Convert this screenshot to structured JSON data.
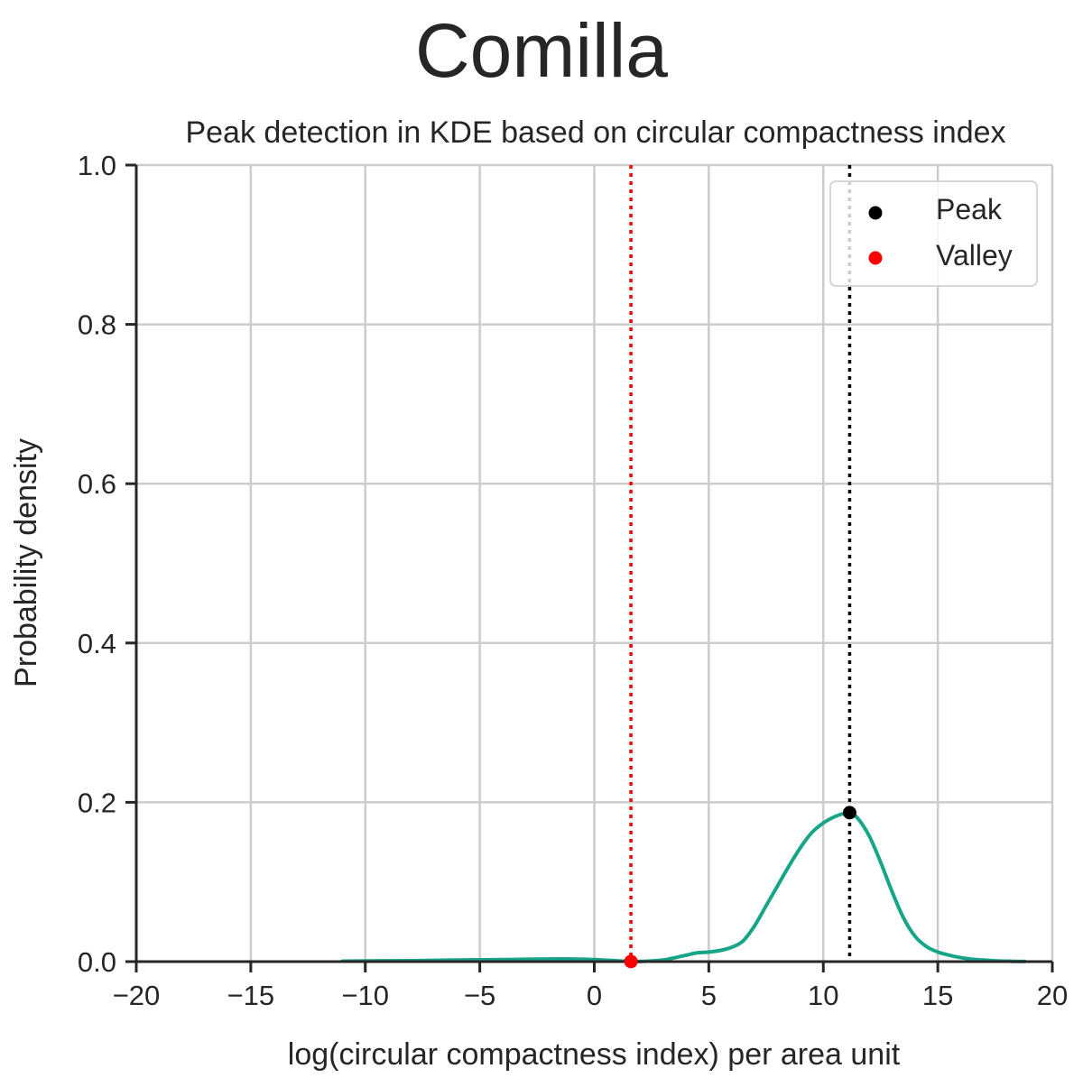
{
  "suptitle": "Comilla",
  "chart_data": {
    "type": "line",
    "title": "Peak detection in KDE based on circular compactness index",
    "xlabel": "log(circular compactness index) per area unit",
    "ylabel": "Probability density",
    "xlim": [
      -20,
      20
    ],
    "ylim": [
      0,
      1.0
    ],
    "x_ticks": [
      -20,
      -15,
      -10,
      -5,
      0,
      5,
      10,
      15,
      20
    ],
    "x_tick_labels": [
      "−20",
      "−15",
      "−10",
      "−5",
      "0",
      "5",
      "10",
      "15",
      "20"
    ],
    "y_ticks": [
      0.0,
      0.2,
      0.4,
      0.6,
      0.8,
      1.0
    ],
    "y_tick_labels": [
      "0.0",
      "0.2",
      "0.4",
      "0.6",
      "0.8",
      "1.0"
    ],
    "grid": true,
    "legend_position": "top-right",
    "kde": {
      "color": "#17a589",
      "x": [
        -11,
        -10,
        -9,
        -8,
        -7,
        -6,
        -5,
        -4,
        -3,
        -2,
        -1,
        0,
        1,
        1.6,
        2,
        3,
        4,
        4.5,
        5,
        5.5,
        6,
        6.5,
        7,
        7.5,
        8,
        8.5,
        9,
        9.5,
        10,
        10.5,
        11,
        11.15,
        11.5,
        12,
        12.5,
        13,
        13.5,
        14,
        14.5,
        15,
        15.5,
        16,
        16.5,
        17,
        17.5,
        18,
        18.8
      ],
      "y": [
        0.0005,
        0.0008,
        0.001,
        0.0012,
        0.0015,
        0.002,
        0.0022,
        0.0025,
        0.003,
        0.0033,
        0.0033,
        0.0025,
        0.001,
        0.0002,
        0.0003,
        0.002,
        0.008,
        0.011,
        0.012,
        0.014,
        0.018,
        0.026,
        0.045,
        0.07,
        0.095,
        0.12,
        0.143,
        0.162,
        0.174,
        0.182,
        0.187,
        0.187,
        0.18,
        0.158,
        0.125,
        0.088,
        0.055,
        0.032,
        0.019,
        0.012,
        0.008,
        0.005,
        0.003,
        0.002,
        0.001,
        0.0005,
        0.0002
      ]
    },
    "peak": {
      "label": "Peak",
      "x": 11.15,
      "y": 0.187,
      "color": "#000000"
    },
    "valley": {
      "label": "Valley",
      "x": 1.6,
      "y": 0.0002,
      "color": "#ff0000"
    },
    "legend": [
      "Peak",
      "Valley"
    ]
  }
}
